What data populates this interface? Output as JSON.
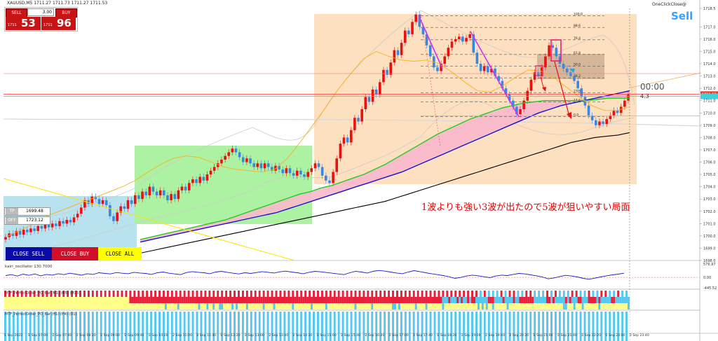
{
  "window": {
    "symbol_line": "XAUUSD,M5  1711.27 1711.73 1711.27 1711.53",
    "one_click": "OneClickClose@"
  },
  "trade_panel": {
    "sell_label": "SELL",
    "buy_label": "BUY",
    "lots": "3.00",
    "sell_price_small": "1711",
    "sell_price_big": "53",
    "buy_price_small": "1711",
    "buy_price_big": "96"
  },
  "signal": {
    "label": "Sell",
    "color": "#3aa0ff"
  },
  "annotation": {
    "text": "1波よりも強い3波が出たので5波が狙いやすい局面",
    "color": "#e00000"
  },
  "timer": {
    "text": "00:00",
    "sub": "4.3"
  },
  "tp_box": {
    "tp_label": "TP",
    "tp_value": "1699.48",
    "off_label": "OFF",
    "off_value": "1723.12"
  },
  "buttons": {
    "close_sell": "CLOSE SELL",
    "close_buy": "CLOSE BUY",
    "close_all": "CLOSE ALL"
  },
  "fib": {
    "levels": [
      {
        "label": "100.0",
        "price": 1717.9
      },
      {
        "label": "88.6",
        "price": 1716.95
      },
      {
        "label": "76.4",
        "price": 1715.95
      },
      {
        "label": "61.8",
        "price": 1714.75
      },
      {
        "label": "50.0",
        "price": 1713.8
      },
      {
        "label": "38.2",
        "price": 1712.85
      },
      {
        "label": "23.6",
        "price": 1711.65
      },
      {
        "label": "14.6",
        "price": 1710.9
      },
      {
        "label": "0.0",
        "price": 1709.7
      }
    ]
  },
  "chart_data": {
    "type": "line",
    "title": "XAUUSD,M5",
    "price_axis": {
      "ticks": [
        "1718.5",
        "1717.0",
        "1716.0",
        "1715.0",
        "1714.0",
        "1713.0",
        "1712.0",
        "1711.0",
        "1710.0",
        "1709.0",
        "1708.0",
        "1707.0",
        "1706.0",
        "1705.0",
        "1704.0",
        "1703.0",
        "1702.0",
        "1701.0",
        "1700.0",
        "1699.0",
        "1698.0"
      ],
      "ylim": [
        1698.0,
        1718.5
      ],
      "current_price_label": "1711.53",
      "current_price": 1711.53,
      "current_price_color": "#ff3030"
    },
    "time_axis": {
      "labels": [
        "1 Sep 2022",
        "2 Sep 07:00",
        "2 Sep 07:40",
        "2 Sep 08:20",
        "2 Sep 09:00",
        "2 Sep 09:40",
        "2 Sep 10:20",
        "2 Sep 11:00",
        "2 Sep 11:40",
        "2 Sep 12:20",
        "2 Sep 13:00",
        "2 Sep 13:40",
        "2 Sep 14:20",
        "2 Sep 15:00",
        "2 Sep 15:40",
        "2 Sep 16:20",
        "2 Sep 17:00",
        "2 Sep 17:40",
        "2 Sep 18:20",
        "2 Sep 19:00",
        "2 Sep 19:40",
        "2 Sep 20:20",
        "2 Sep 21:00",
        "2 Sep 21:40",
        "2 Sep 22:20",
        "2 Sep 23:00",
        "2 Sep 23:40"
      ]
    },
    "series": [
      {
        "name": "close",
        "color": "#3a87e0",
        "values": [
          1699.9,
          1700.2,
          1700.0,
          1700.4,
          1700.1,
          1700.5,
          1700.3,
          1700.6,
          1700.4,
          1700.8,
          1700.6,
          1700.9,
          1700.7,
          1701.0,
          1700.8,
          1701.2,
          1701.0,
          1701.3,
          1701.1,
          1701.5,
          1701.8,
          1702.3,
          1702.9,
          1702.6,
          1703.2,
          1703.0,
          1702.6,
          1702.9,
          1702.5,
          1701.6,
          1701.2,
          1701.9,
          1702.4,
          1702.2,
          1702.9,
          1702.6,
          1703.3,
          1703.0,
          1703.6,
          1703.3,
          1704.0,
          1703.6,
          1703.3,
          1703.7,
          1703.3,
          1702.9,
          1703.4,
          1703.0,
          1703.7,
          1704.0,
          1703.7,
          1704.3,
          1704.6,
          1704.3,
          1704.8,
          1704.5,
          1705.0,
          1705.3,
          1705.6,
          1705.9,
          1706.2,
          1706.5,
          1706.8,
          1707.1,
          1706.8,
          1706.4,
          1706.0,
          1706.3,
          1705.9,
          1705.6,
          1705.9,
          1705.5,
          1705.9,
          1705.6,
          1705.3,
          1705.7,
          1705.4,
          1705.1,
          1705.5,
          1705.1,
          1704.9,
          1705.3,
          1705.0,
          1704.8,
          1705.2,
          1705.5,
          1705.9,
          1705.6,
          1704.9,
          1704.5,
          1704.3,
          1705.2,
          1706.3,
          1707.5,
          1708.0,
          1707.6,
          1708.6,
          1709.6,
          1709.3,
          1710.3,
          1711.3,
          1710.9,
          1711.9,
          1711.5,
          1712.5,
          1713.5,
          1713.1,
          1714.1,
          1715.1,
          1714.7,
          1715.7,
          1716.7,
          1716.4,
          1717.4,
          1718.0,
          1717.0,
          1716.4,
          1715.5,
          1714.6,
          1713.7,
          1713.4,
          1714.0,
          1714.6,
          1715.3,
          1715.8,
          1716.0,
          1716.2,
          1715.8,
          1716.1,
          1716.4,
          1714.9,
          1714.0,
          1713.4,
          1713.8,
          1713.3,
          1713.6,
          1713.0,
          1712.6,
          1712.0,
          1711.5,
          1711.0,
          1710.5,
          1709.9,
          1710.3,
          1711.0,
          1711.8,
          1712.7,
          1713.3,
          1713.0,
          1713.7,
          1714.6,
          1715.5,
          1715.3,
          1714.6,
          1714.0,
          1713.6,
          1713.3,
          1713.0,
          1712.6,
          1712.0,
          1711.3,
          1710.6,
          1709.8,
          1709.4,
          1709.0,
          1709.3,
          1709.1,
          1709.5,
          1709.8,
          1710.2,
          1710.0,
          1710.5,
          1711.0,
          1711.5
        ]
      },
      {
        "name": "ma_fast",
        "color": "#f5b31b",
        "values": [
          1700.0,
          1700.5,
          1701.0,
          1701.6,
          1702.0,
          1702.4,
          1702.8,
          1703.2,
          1703.6,
          1704.0,
          1704.5,
          1705.2,
          1705.8,
          1706.3,
          1706.5,
          1706.4,
          1706.0,
          1705.6,
          1705.4,
          1705.3,
          1705.2,
          1705.4,
          1706.3,
          1707.6,
          1709.0,
          1710.4,
          1711.9,
          1713.2,
          1714.4,
          1715.0,
          1714.6,
          1714.3,
          1714.2,
          1714.3,
          1714.0,
          1713.3,
          1712.5,
          1711.8,
          1711.7,
          1712.2,
          1712.9,
          1713.5,
          1713.4,
          1712.9,
          1712.1,
          1711.3,
          1710.6,
          1710.2,
          1710.2,
          1710.5
        ]
      },
      {
        "name": "ma_mid",
        "color": "#22cc22",
        "values": [
          1699.7,
          1699.9,
          1700.1,
          1700.3,
          1700.5,
          1700.7,
          1700.9,
          1701.1,
          1701.3,
          1701.6,
          1701.9,
          1702.2,
          1702.5,
          1702.8,
          1703.1,
          1703.4,
          1703.6,
          1703.9,
          1704.1,
          1704.4,
          1704.7,
          1705.0,
          1705.4,
          1705.8,
          1706.3,
          1706.8,
          1707.3,
          1707.8,
          1708.3,
          1708.7,
          1709.1,
          1709.5,
          1709.8,
          1710.1,
          1710.4,
          1710.6,
          1710.8,
          1710.9,
          1711.0,
          1711.0,
          1711.0,
          1711.0,
          1711.0,
          1711.1,
          1711.2,
          1711.2,
          1711.2
        ]
      },
      {
        "name": "ma_slow",
        "color": "#1414cc",
        "values": [
          1699.5,
          1699.7,
          1699.9,
          1700.1,
          1700.3,
          1700.5,
          1700.7,
          1700.9,
          1701.1,
          1701.3,
          1701.5,
          1701.7,
          1701.9,
          1702.2,
          1702.5,
          1702.8,
          1703.1,
          1703.4,
          1703.7,
          1704.0,
          1704.3,
          1704.6,
          1704.9,
          1705.2,
          1705.6,
          1706.0,
          1706.4,
          1706.8,
          1707.2,
          1707.6,
          1708.0,
          1708.4,
          1708.8,
          1709.2,
          1709.6,
          1710.0,
          1710.3,
          1710.6,
          1710.8,
          1711.0,
          1711.2,
          1711.4,
          1711.6,
          1711.8
        ]
      },
      {
        "name": "ma_long",
        "color": "#000000",
        "values": [
          1698.6,
          1698.8,
          1699.0,
          1699.2,
          1699.4,
          1699.6,
          1699.8,
          1700.0,
          1700.2,
          1700.4,
          1700.6,
          1700.8,
          1701.0,
          1701.2,
          1701.4,
          1701.6,
          1701.8,
          1702.0,
          1702.2,
          1702.4,
          1702.6,
          1702.8,
          1703.1,
          1703.4,
          1703.7,
          1704.0,
          1704.3,
          1704.6,
          1704.9,
          1705.2,
          1705.5,
          1705.8,
          1706.1,
          1706.4,
          1706.7,
          1707.0,
          1707.3,
          1707.6,
          1707.8,
          1708.0,
          1708.1,
          1708.2,
          1708.4
        ]
      }
    ],
    "oscillator": {
      "label": "kairi_oscillator 130.7000",
      "ticks": [
        "576.97",
        "0.00",
        "-445.52"
      ],
      "ylim": [
        -445.52,
        576.97
      ],
      "values": [
        80,
        120,
        60,
        140,
        90,
        150,
        70,
        130,
        100,
        160,
        120,
        180,
        140,
        100,
        160,
        130,
        200,
        170,
        150,
        210,
        180,
        160,
        220,
        190,
        170,
        130,
        200,
        230,
        180,
        150,
        120,
        210,
        250,
        220,
        200,
        160,
        230,
        260,
        220,
        180,
        150,
        200,
        170,
        210,
        250,
        220,
        190,
        240,
        270,
        230,
        200,
        160,
        220,
        260,
        240,
        210,
        180,
        150,
        120,
        200,
        260,
        230,
        190,
        260,
        300,
        270,
        230,
        190,
        160,
        230,
        290,
        250,
        200,
        160,
        120,
        80,
        30,
        -40,
        0,
        60,
        100,
        70,
        30,
        -10,
        60,
        100,
        80,
        130,
        170,
        150,
        110,
        70,
        20,
        -60,
        -20,
        40,
        90,
        60,
        20,
        -40,
        -80,
        -30,
        20,
        70,
        110,
        140,
        180
      ]
    },
    "mtf_panel_1": {
      "label": "MTF_PerfectOrder_PO_Bar (M1) (M5) (M15)",
      "colors": {
        "red": "#e8203a",
        "yellow": "#ffff88",
        "blue": "#55c8f0"
      }
    },
    "mtf_panel_2": {
      "label": "MTF_PerfectOrder_PO_Bar (H1) (H4) (D1)"
    }
  }
}
